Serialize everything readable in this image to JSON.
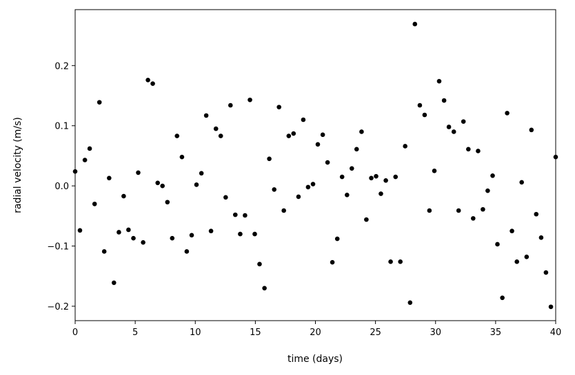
{
  "chart_data": {
    "type": "scatter",
    "x_label": "time (days)",
    "y_label": "radial velocity (m/s)",
    "color": "#000000",
    "x": [
      0,
      0.4,
      0.81,
      1.21,
      1.62,
      2.02,
      2.42,
      2.83,
      3.23,
      3.64,
      4.04,
      4.44,
      4.85,
      5.25,
      5.66,
      6.06,
      6.46,
      6.87,
      7.27,
      7.68,
      8.08,
      8.48,
      8.89,
      9.29,
      9.7,
      10.1,
      10.51,
      10.91,
      11.31,
      11.72,
      12.12,
      12.53,
      12.93,
      13.33,
      13.74,
      14.14,
      14.55,
      14.95,
      15.35,
      15.76,
      16.16,
      16.57,
      16.97,
      17.37,
      17.78,
      18.18,
      18.59,
      18.99,
      19.39,
      19.8,
      20.2,
      20.61,
      21.01,
      21.41,
      21.82,
      22.22,
      22.63,
      23.03,
      23.43,
      23.84,
      24.24,
      24.65,
      25.05,
      25.45,
      25.86,
      26.26,
      26.67,
      27.07,
      27.47,
      27.88,
      28.28,
      28.69,
      29.09,
      29.49,
      29.9,
      30.3,
      30.71,
      31.11,
      31.52,
      31.92,
      32.32,
      32.73,
      33.13,
      33.54,
      33.94,
      34.34,
      34.75,
      35.15,
      35.56,
      35.96,
      36.36,
      36.77,
      37.17,
      37.58,
      37.98,
      38.38,
      38.79,
      39.19,
      39.6,
      40
    ],
    "values": [
      0.024,
      -0.074,
      0.043,
      0.062,
      -0.03,
      0.139,
      -0.109,
      0.013,
      -0.161,
      -0.077,
      -0.017,
      -0.073,
      -0.087,
      0.022,
      -0.094,
      0.176,
      0.17,
      0.005,
      0.0,
      -0.027,
      -0.087,
      0.083,
      0.048,
      -0.109,
      -0.082,
      0.002,
      0.021,
      0.117,
      -0.075,
      0.095,
      0.083,
      -0.019,
      0.134,
      -0.048,
      -0.08,
      -0.049,
      0.143,
      -0.08,
      -0.13,
      -0.17,
      0.045,
      -0.006,
      0.131,
      -0.041,
      0.083,
      0.087,
      -0.018,
      0.11,
      -0.002,
      0.003,
      0.069,
      0.085,
      0.039,
      -0.127,
      -0.088,
      0.015,
      -0.015,
      0.029,
      0.061,
      0.09,
      -0.056,
      0.013,
      0.016,
      -0.013,
      0.009,
      -0.126,
      0.015,
      -0.126,
      0.066,
      -0.194,
      0.269,
      0.134,
      0.118,
      -0.041,
      0.025,
      0.174,
      0.142,
      0.098,
      0.09,
      -0.041,
      0.107,
      0.061,
      -0.054,
      0.058,
      -0.039,
      -0.008,
      0.017,
      -0.097,
      -0.186,
      0.121,
      -0.075,
      -0.126,
      0.006,
      -0.118,
      0.093,
      -0.047,
      -0.086,
      -0.144,
      -0.201,
      0.048
    ],
    "xlim": [
      0,
      40
    ],
    "xticks": [
      0,
      5,
      10,
      15,
      20,
      25,
      30,
      35,
      40
    ],
    "ylim": [
      -0.224,
      0.293
    ],
    "yticks": [
      {
        "value": -0.2,
        "label": "−0.2"
      },
      {
        "value": -0.1,
        "label": "−0.1"
      },
      {
        "value": 0,
        "label": "0.0"
      },
      0.1,
      0.2
    ],
    "grid": false
  }
}
